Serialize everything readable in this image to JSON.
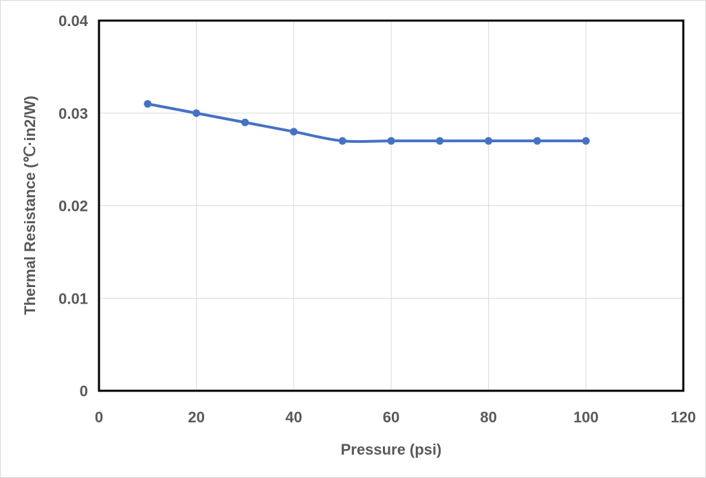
{
  "chart_data": {
    "type": "line",
    "title": "",
    "xlabel": "Pressure (psi)",
    "ylabel": "Thermal Resistance (℃·in2/W)",
    "xlim": [
      0,
      120
    ],
    "ylim": [
      0,
      0.04
    ],
    "x_ticks": [
      "0",
      "20",
      "40",
      "60",
      "80",
      "100",
      "120"
    ],
    "y_ticks": [
      "0",
      "0.01",
      "0.02",
      "0.03",
      "0.04"
    ],
    "grid": true,
    "legend": "none",
    "series": [
      {
        "name": "Thermal Resistance",
        "color": "#4472C4",
        "marker": "circle",
        "x": [
          10,
          20,
          30,
          40,
          50,
          60,
          70,
          80,
          90,
          100
        ],
        "y": [
          0.031,
          0.03,
          0.029,
          0.028,
          0.027,
          0.027,
          0.027,
          0.027,
          0.027,
          0.027
        ]
      }
    ]
  }
}
